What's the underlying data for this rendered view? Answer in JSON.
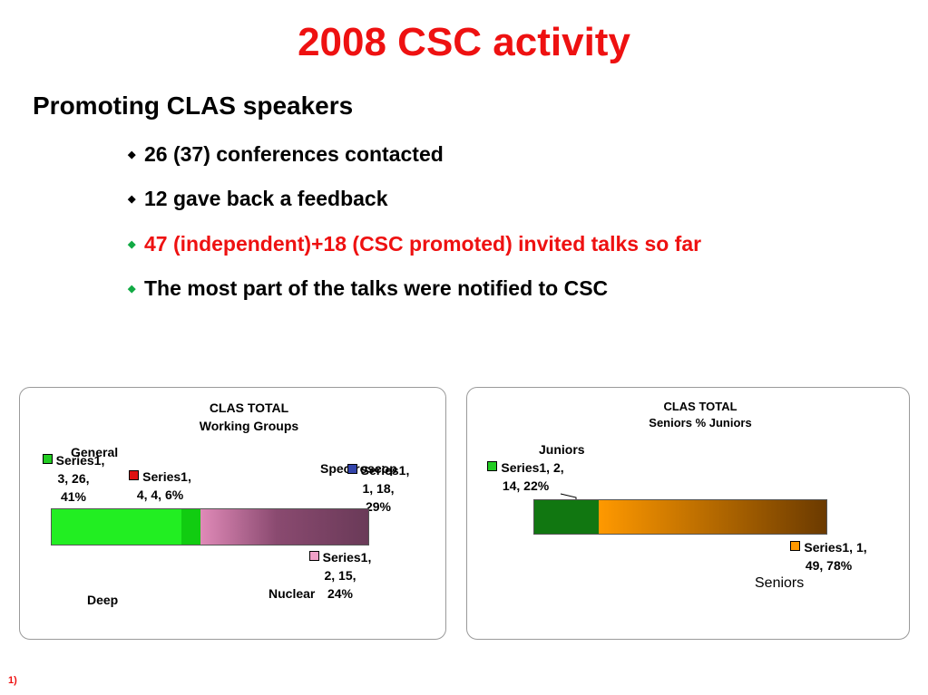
{
  "title": "2008 CSC activity",
  "heading": "Promoting CLAS speakers",
  "bullets": [
    {
      "text": "26 (37) conferences contacted",
      "color": "#000000",
      "marker_color": "#000000"
    },
    {
      "text": "12 gave back a feedback",
      "color": "#000000",
      "marker_color": "#000000"
    },
    {
      "text": "47 (independent)+18 (CSC promoted) invited talks so far",
      "color": "#ee1111",
      "marker_color": "#11aa44"
    },
    {
      "text": "The most part of the talks were notified to CSC",
      "color": "#000000",
      "marker_color": "#11aa44"
    }
  ],
  "bullet_marker": "◆",
  "footnote": "1)",
  "chart_data": [
    {
      "type": "bar",
      "title": "CLAS TOTAL",
      "subtitle": "Working Groups",
      "stacked": "100%",
      "segments": [
        {
          "category": "General",
          "label_line1": "Series1,",
          "label_line2": "3, 26,",
          "label_line3": "41%",
          "percent": 41,
          "color": "#22ee22"
        },
        {
          "category": "",
          "label_line1": "Series1,",
          "label_line2": "4, 4, 6%",
          "label_line3": "",
          "percent": 6,
          "color": "#11cc11"
        },
        {
          "category": "Nuclear",
          "label_line1": "Series1,",
          "label_line2": "2, 15,",
          "label_line3": "24%",
          "percent": 24,
          "color": "#e08ab8"
        },
        {
          "category": "Spectroscop",
          "label_line1": "Series1,",
          "label_line2": "1, 18,",
          "label_line3": "29%",
          "percent": 29,
          "color": "#6a3a58"
        }
      ],
      "extra_category": "Deep",
      "legend_marker_colors": [
        "#22cc22",
        "#dd1111",
        "#f0a0c8",
        "#3344aa"
      ]
    },
    {
      "type": "bar",
      "title": "CLAS TOTAL",
      "subtitle": "Seniors % Juniors",
      "stacked": "100%",
      "segments": [
        {
          "category": "Juniors",
          "label_line1": "Series1, 2,",
          "label_line2": "14, 22%",
          "percent": 22,
          "color": "#117711"
        },
        {
          "category": "Seniors",
          "label_line1": "Series1, 1,",
          "label_line2": "49, 78%",
          "percent": 78,
          "color": "#ff9900"
        }
      ],
      "legend_marker_colors": [
        "#22cc22",
        "#ff9900"
      ]
    }
  ]
}
